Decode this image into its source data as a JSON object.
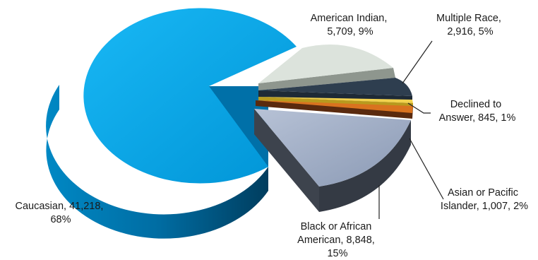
{
  "chart_data": {
    "type": "pie",
    "title": "",
    "style": "3d-exploded",
    "slices": [
      {
        "name": "Caucasian",
        "value": 41218,
        "percent": 68,
        "color": "#00A6E6",
        "label_lines": [
          "Caucasian, 41,218,",
          "68%"
        ]
      },
      {
        "name": "American Indian",
        "value": 5709,
        "percent": 9,
        "color": "#DCE3DC",
        "label_lines": [
          "American Indian,",
          "5,709, 9%"
        ]
      },
      {
        "name": "Multiple Race",
        "value": 2916,
        "percent": 5,
        "color": "#2E3E4F",
        "label_lines": [
          "Multiple Race,",
          "2,916, 5%"
        ]
      },
      {
        "name": "Declined to Answer",
        "value": 845,
        "percent": 1,
        "color": "#F2D24E",
        "label_lines": [
          "Declined to",
          "Answer, 845, 1%"
        ]
      },
      {
        "name": "Asian or Pacific Islander",
        "value": 1007,
        "percent": 2,
        "color": "#D9731F",
        "label_lines": [
          "Asian or Pacific",
          "Islander, 1,007, 2%"
        ]
      },
      {
        "name": "Black or African American",
        "value": 8848,
        "percent": 15,
        "color": "#9AA8C0",
        "label_lines": [
          "Black or African",
          "American, 8,848,",
          "15%"
        ]
      }
    ]
  }
}
